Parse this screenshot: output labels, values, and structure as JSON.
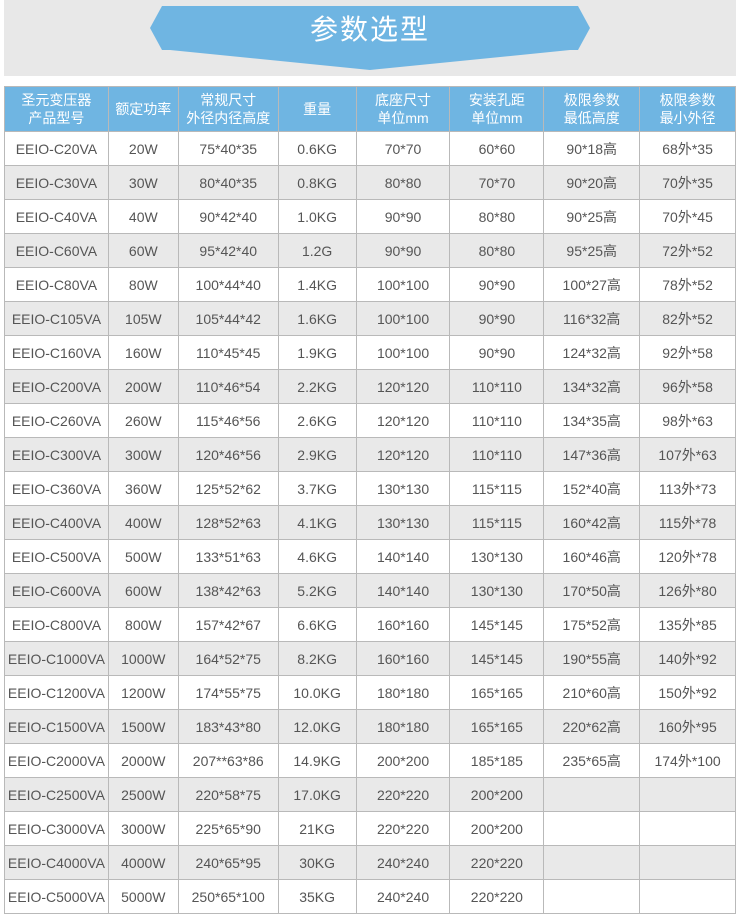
{
  "banner": {
    "title": "参数选型"
  },
  "colors": {
    "accent": "#6fb5e2",
    "banner_bg": "#e8e8e8",
    "row_odd": "#ffffff",
    "row_even": "#e9e9e9",
    "border": "#b9b9b9",
    "header_text": "#ffffff",
    "cell_text": "#555555"
  },
  "table": {
    "headers": [
      {
        "line1": "圣元变压器",
        "line2": "产品型号"
      },
      {
        "line1": "额定功率",
        "line2": ""
      },
      {
        "line1": "常规尺寸",
        "line2": "外径内径高度"
      },
      {
        "line1": "重量",
        "line2": ""
      },
      {
        "line1": "底座尺寸",
        "line2": "单位mm"
      },
      {
        "line1": "安装孔距",
        "line2": "单位mm"
      },
      {
        "line1": "极限参数",
        "line2": "最低高度"
      },
      {
        "line1": "极限参数",
        "line2": "最小外径"
      }
    ],
    "rows": [
      [
        "EEIO-C20VA",
        "20W",
        "75*40*35",
        "0.6KG",
        "70*70",
        "60*60",
        "90*18高",
        "68外*35"
      ],
      [
        "EEIO-C30VA",
        "30W",
        "80*40*35",
        "0.8KG",
        "80*80",
        "70*70",
        "90*20高",
        "70外*35"
      ],
      [
        "EEIO-C40VA",
        "40W",
        "90*42*40",
        "1.0KG",
        "90*90",
        "80*80",
        "90*25高",
        "70外*45"
      ],
      [
        "EEIO-C60VA",
        "60W",
        "95*42*40",
        "1.2G",
        "90*90",
        "80*80",
        "95*25高",
        "72外*52"
      ],
      [
        "EEIO-C80VA",
        "80W",
        "100*44*40",
        "1.4KG",
        "100*100",
        "90*90",
        "100*27高",
        "78外*52"
      ],
      [
        "EEIO-C105VA",
        "105W",
        "105*44*42",
        "1.6KG",
        "100*100",
        "90*90",
        "116*32高",
        "82外*52"
      ],
      [
        "EEIO-C160VA",
        "160W",
        "110*45*45",
        "1.9KG",
        "100*100",
        "90*90",
        "124*32高",
        "92外*58"
      ],
      [
        "EEIO-C200VA",
        "200W",
        "110*46*54",
        "2.2KG",
        "120*120",
        "110*110",
        "134*32高",
        "96外*58"
      ],
      [
        "EEIO-C260VA",
        "260W",
        "115*46*56",
        "2.6KG",
        "120*120",
        "110*110",
        "134*35高",
        "98外*63"
      ],
      [
        "EEIO-C300VA",
        "300W",
        "120*46*56",
        "2.9KG",
        "120*120",
        "110*110",
        "147*36高",
        "107外*63"
      ],
      [
        "EEIO-C360VA",
        "360W",
        "125*52*62",
        "3.7KG",
        "130*130",
        "115*115",
        "152*40高",
        "113外*73"
      ],
      [
        "EEIO-C400VA",
        "400W",
        "128*52*63",
        "4.1KG",
        "130*130",
        "115*115",
        "160*42高",
        "115外*78"
      ],
      [
        "EEIO-C500VA",
        "500W",
        "133*51*63",
        "4.6KG",
        "140*140",
        "130*130",
        "160*46高",
        "120外*78"
      ],
      [
        "EEIO-C600VA",
        "600W",
        "138*42*63",
        "5.2KG",
        "140*140",
        "130*130",
        "170*50高",
        "126外*80"
      ],
      [
        "EEIO-C800VA",
        "800W",
        "157*42*67",
        "6.6KG",
        "160*160",
        "145*145",
        "175*52高",
        "135外*85"
      ],
      [
        "EEIO-C1000VA",
        "1000W",
        "164*52*75",
        "8.2KG",
        "160*160",
        "145*145",
        "190*55高",
        "140外*92"
      ],
      [
        "EEIO-C1200VA",
        "1200W",
        "174*55*75",
        "10.0KG",
        "180*180",
        "165*165",
        "210*60高",
        "150外*92"
      ],
      [
        "EEIO-C1500VA",
        "1500W",
        "183*43*80",
        "12.0KG",
        "180*180",
        "165*165",
        "220*62高",
        "160外*95"
      ],
      [
        "EEIO-C2000VA",
        "2000W",
        "207**63*86",
        "14.9KG",
        "200*200",
        "185*185",
        "235*65高",
        "174外*100"
      ],
      [
        "EEIO-C2500VA",
        "2500W",
        "220*58*75",
        "17.0KG",
        "220*220",
        "200*200",
        "",
        ""
      ],
      [
        "EEIO-C3000VA",
        "3000W",
        "225*65*90",
        "21KG",
        "220*220",
        "200*200",
        "",
        ""
      ],
      [
        "EEIO-C4000VA",
        "4000W",
        "240*65*95",
        "30KG",
        "240*240",
        "220*220",
        "",
        ""
      ],
      [
        "EEIO-C5000VA",
        "5000W",
        "250*65*100",
        "35KG",
        "240*240",
        "220*220",
        "",
        ""
      ]
    ]
  }
}
